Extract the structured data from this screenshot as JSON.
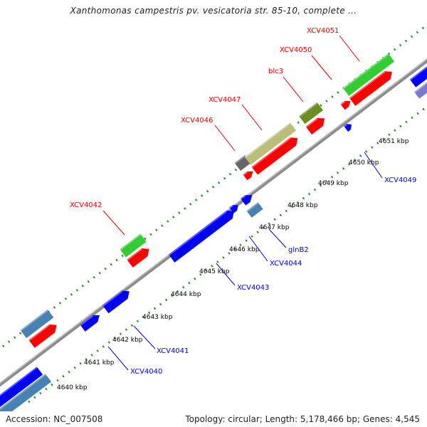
{
  "title": "Xanthomonas campestris pv. vesicatoria str. 85-10, complete ...",
  "footer": {
    "accession": "Accession: NC_007508",
    "topology": "Topology: circular; Length: 5,178,466 bp; Genes: 4,545"
  },
  "colors": {
    "backbone": "#8c8c8c",
    "dots": "#2a8a2a",
    "forward_label": "#e00000",
    "reverse_label": "#0000cc",
    "tick_label": "#000000"
  },
  "ticks": [
    "4640 kbp",
    "4641 kbp",
    "4642 kbp",
    "4643 kbp",
    "4644 kbp",
    "4645 kbp",
    "4646 kbp",
    "4647 kbp",
    "4648 kbp",
    "4649 kbp",
    "4650 kbp",
    "4651 kbp"
  ],
  "genes": [
    {
      "name": "XCV4040",
      "strand": "reverse"
    },
    {
      "name": "XCV4041",
      "strand": "reverse"
    },
    {
      "name": "XCV4042",
      "strand": "forward"
    },
    {
      "name": "XCV4043",
      "strand": "reverse"
    },
    {
      "name": "XCV4044",
      "strand": "reverse"
    },
    {
      "name": "glnB2",
      "strand": "reverse"
    },
    {
      "name": "XCV4046",
      "strand": "forward"
    },
    {
      "name": "XCV4047",
      "strand": "forward"
    },
    {
      "name": "blc3",
      "strand": "forward"
    },
    {
      "name": "XCV4050",
      "strand": "forward"
    },
    {
      "name": "XCV4051",
      "strand": "forward"
    },
    {
      "name": "XCV4049",
      "strand": "reverse"
    }
  ]
}
